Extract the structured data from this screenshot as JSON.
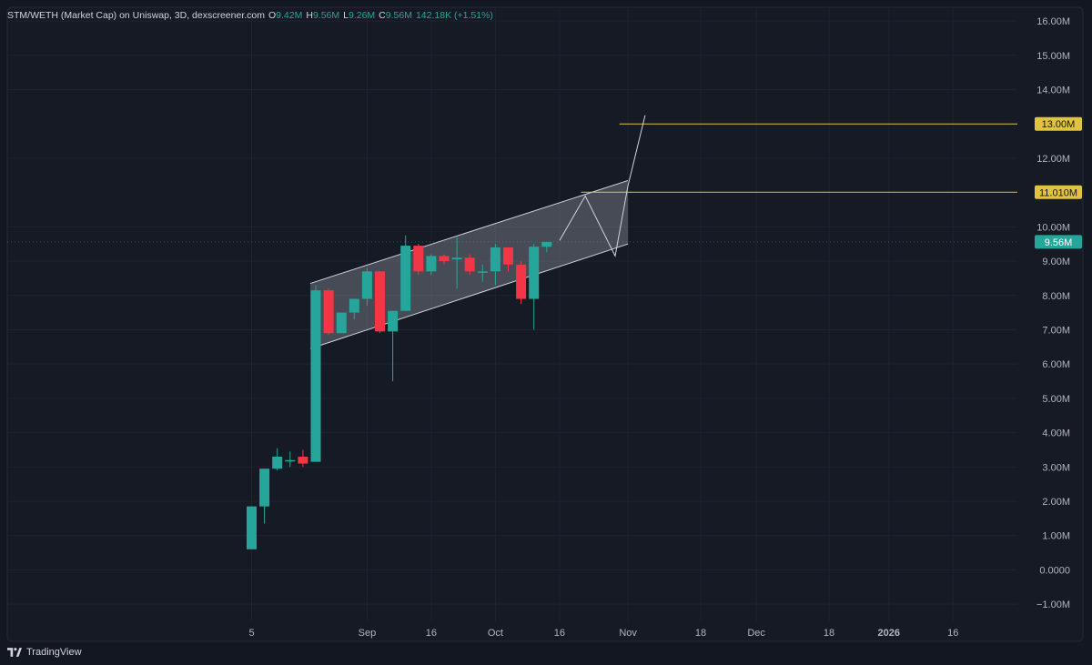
{
  "header": {
    "symbol": "STM/WETH (Market Cap) on Uniswap, 3D, dexscreener.com",
    "o_label": "O",
    "o_value": "9.42M",
    "h_label": "H",
    "h_value": "9.56M",
    "l_label": "L",
    "l_value": "9.26M",
    "c_label": "C",
    "c_value": "9.56M",
    "change": "142.18K (+1.51%)"
  },
  "footer": {
    "brand": "TradingView"
  },
  "colors": {
    "background": "#131722",
    "up": "#26a69a",
    "down": "#f23645",
    "level": "#e0c341",
    "axis_text": "#b2b5be"
  },
  "chart_data": {
    "type": "candlestick",
    "title": "STM/WETH (Market Cap) on Uniswap, 3D, dexscreener.com",
    "interval": "3D",
    "ylim": [
      -1.5,
      16.4
    ],
    "y_ticks": [
      {
        "value": 16,
        "label": "16.00M"
      },
      {
        "value": 15,
        "label": "15.00M"
      },
      {
        "value": 14,
        "label": "14.00M"
      },
      {
        "value": 12,
        "label": "12.00M"
      },
      {
        "value": 10,
        "label": "10.00M"
      },
      {
        "value": 9,
        "label": "9.00M"
      },
      {
        "value": 8,
        "label": "8.00M"
      },
      {
        "value": 7,
        "label": "7.00M"
      },
      {
        "value": 6,
        "label": "6.00M"
      },
      {
        "value": 5,
        "label": "5.00M"
      },
      {
        "value": 4,
        "label": "4.00M"
      },
      {
        "value": 3,
        "label": "3.00M"
      },
      {
        "value": 2,
        "label": "2.00M"
      },
      {
        "value": 1,
        "label": "1.00M"
      },
      {
        "value": 0,
        "label": "0.0000"
      },
      {
        "value": -1,
        "label": "−1.00M"
      }
    ],
    "x_ticks": [
      {
        "date": "2025-08-05",
        "label": "5"
      },
      {
        "date": "2025-09-01",
        "label": "Sep"
      },
      {
        "date": "2025-09-16",
        "label": "16"
      },
      {
        "date": "2025-10-01",
        "label": "Oct"
      },
      {
        "date": "2025-10-16",
        "label": "16"
      },
      {
        "date": "2025-11-01",
        "label": "Nov"
      },
      {
        "date": "2025-11-18",
        "label": "18"
      },
      {
        "date": "2025-12-01",
        "label": "Dec"
      },
      {
        "date": "2025-12-18",
        "label": "18"
      },
      {
        "date": "2026-01-01",
        "label": "2026"
      },
      {
        "date": "2026-01-16",
        "label": "16"
      }
    ],
    "candles": [
      {
        "date": "2025-08-05",
        "o": 0.6,
        "h": 1.85,
        "l": 0.6,
        "c": 1.85
      },
      {
        "date": "2025-08-08",
        "o": 1.85,
        "h": 2.95,
        "l": 1.35,
        "c": 2.95
      },
      {
        "date": "2025-08-11",
        "o": 2.95,
        "h": 3.55,
        "l": 2.9,
        "c": 3.3
      },
      {
        "date": "2025-08-14",
        "o": 3.2,
        "h": 3.45,
        "l": 3.0,
        "c": 3.2
      },
      {
        "date": "2025-08-17",
        "o": 3.3,
        "h": 3.5,
        "l": 3.0,
        "c": 3.1
      },
      {
        "date": "2025-08-20",
        "o": 3.15,
        "h": 8.3,
        "l": 3.15,
        "c": 8.15
      },
      {
        "date": "2025-08-23",
        "o": 8.15,
        "h": 8.2,
        "l": 6.85,
        "c": 6.9
      },
      {
        "date": "2025-08-26",
        "o": 6.9,
        "h": 7.5,
        "l": 6.9,
        "c": 7.5
      },
      {
        "date": "2025-08-29",
        "o": 7.5,
        "h": 7.9,
        "l": 7.3,
        "c": 7.9
      },
      {
        "date": "2025-09-01",
        "o": 7.9,
        "h": 8.8,
        "l": 7.7,
        "c": 8.7
      },
      {
        "date": "2025-09-04",
        "o": 8.7,
        "h": 8.7,
        "l": 6.9,
        "c": 6.95
      },
      {
        "date": "2025-09-07",
        "o": 6.95,
        "h": 7.55,
        "l": 5.5,
        "c": 7.55
      },
      {
        "date": "2025-09-10",
        "o": 7.55,
        "h": 9.75,
        "l": 7.55,
        "c": 9.45
      },
      {
        "date": "2025-09-13",
        "o": 9.45,
        "h": 9.5,
        "l": 8.6,
        "c": 8.7
      },
      {
        "date": "2025-09-16",
        "o": 8.7,
        "h": 9.2,
        "l": 8.6,
        "c": 9.15
      },
      {
        "date": "2025-09-19",
        "o": 9.15,
        "h": 9.2,
        "l": 8.9,
        "c": 9.0
      },
      {
        "date": "2025-09-22",
        "o": 9.05,
        "h": 9.7,
        "l": 8.2,
        "c": 9.1
      },
      {
        "date": "2025-09-25",
        "o": 9.1,
        "h": 9.2,
        "l": 8.6,
        "c": 8.7
      },
      {
        "date": "2025-09-28",
        "o": 8.7,
        "h": 8.9,
        "l": 8.4,
        "c": 8.7
      },
      {
        "date": "2025-10-01",
        "o": 8.7,
        "h": 9.5,
        "l": 8.3,
        "c": 9.4
      },
      {
        "date": "2025-10-04",
        "o": 9.4,
        "h": 9.4,
        "l": 8.7,
        "c": 8.9
      },
      {
        "date": "2025-10-07",
        "o": 8.9,
        "h": 9.0,
        "l": 7.75,
        "c": 7.9
      },
      {
        "date": "2025-10-10",
        "o": 7.9,
        "h": 9.5,
        "l": 7.0,
        "c": 9.42
      },
      {
        "date": "2025-10-13",
        "o": 9.42,
        "h": 9.56,
        "l": 9.26,
        "c": 9.56
      }
    ],
    "channel": {
      "start": {
        "date": "2025-08-20",
        "upper": 8.35,
        "lower": 6.45
      },
      "end": {
        "date": "2025-11-01",
        "upper": 11.35,
        "lower": 9.5
      }
    },
    "projection_path": [
      {
        "date": "2025-10-16",
        "value": 9.6
      },
      {
        "date": "2025-10-22",
        "value": 10.9
      },
      {
        "date": "2025-10-29",
        "value": 9.15
      },
      {
        "date": "2025-11-01",
        "value": 11.2
      },
      {
        "date": "2025-11-05",
        "value": 13.25
      }
    ],
    "levels": [
      {
        "value": 13.0,
        "label": "13.00M",
        "from_date": "2025-10-30"
      },
      {
        "value": 11.01,
        "label": "11.010M",
        "from_date": "2025-10-21"
      }
    ],
    "last_price": {
      "value": 9.56,
      "label": "9.56M"
    }
  }
}
